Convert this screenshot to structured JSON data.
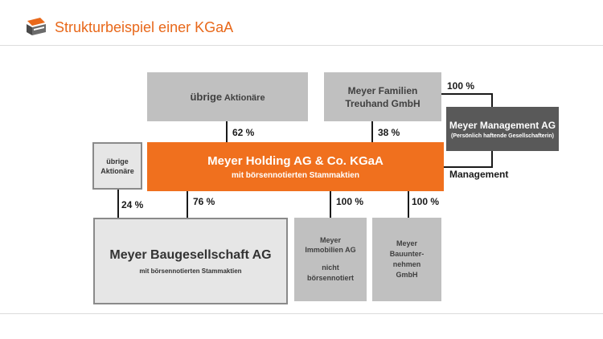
{
  "header": {
    "title": "Strukturbeispiel einer KGaA"
  },
  "boxes": {
    "uebrige_top_bold": "übrige",
    "uebrige_top_rest": " Aktionäre",
    "meyer_familien_line1": "Meyer Familien",
    "meyer_familien_line2": "Treuhand GmbH",
    "management_title": "Meyer Management AG",
    "management_sub": "(Persönlich haftende Gesellschafterin)",
    "holding_title": "Meyer Holding AG & Co. KGaA",
    "holding_sub": "mit börsennotierten Stammaktien",
    "uebrige_left_line1": "übrige",
    "uebrige_left_line2": "Aktionäre",
    "bau_title": "Meyer Baugesellschaft AG",
    "bau_sub": "mit börsennotierten Stammaktien",
    "immo_line1": "Meyer",
    "immo_line2": "Immobilien AG",
    "immo_line3": "nicht",
    "immo_line4": "börsennotiert",
    "bauunter_line1": "Meyer",
    "bauunter_line2": "Bauunter-",
    "bauunter_line3": "nehmen",
    "bauunter_line4": "GmbH"
  },
  "labels": {
    "pct_62": "62  %",
    "pct_38": "38  %",
    "pct_100_top": "100 %",
    "management": "Management",
    "pct_24": "24  %",
    "pct_76": "76  %",
    "pct_100_immo": "100 %",
    "pct_100_bau": "100 %"
  }
}
